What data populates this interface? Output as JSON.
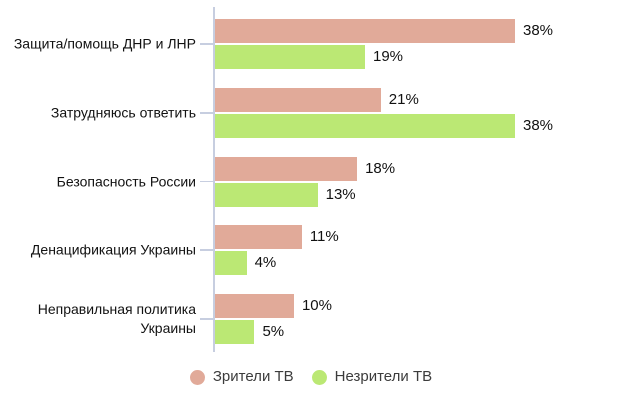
{
  "chart_data": {
    "type": "bar",
    "orientation": "horizontal",
    "title": "",
    "categories": [
      "Защита/помощь ДНР и ЛНР",
      "Затрудняюсь ответить",
      "Безопасность России",
      "Денацификация Украины",
      "Неправильная политика Украины"
    ],
    "series": [
      {
        "name": "Зрители ТВ",
        "color": "#e1aa99",
        "values": [
          38,
          21,
          18,
          11,
          10
        ]
      },
      {
        "name": "Незрители ТВ",
        "color": "#bbe874",
        "values": [
          19,
          38,
          13,
          4,
          5
        ]
      }
    ],
    "value_suffix": "%",
    "xlim": [
      0,
      40
    ],
    "axis_color": "#c7cee0",
    "grid": "off",
    "legend_position": "bottom-center"
  }
}
